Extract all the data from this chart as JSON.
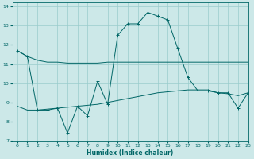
{
  "title": "",
  "xlabel": "Humidex (Indice chaleur)",
  "xlim": [
    -0.5,
    23
  ],
  "ylim": [
    7,
    14.2
  ],
  "yticks": [
    7,
    8,
    9,
    10,
    11,
    12,
    13,
    14
  ],
  "xticks": [
    0,
    1,
    2,
    3,
    4,
    5,
    6,
    7,
    8,
    9,
    10,
    11,
    12,
    13,
    14,
    15,
    16,
    17,
    18,
    19,
    20,
    21,
    22,
    23
  ],
  "bg_color": "#cce8e8",
  "grid_color": "#99cccc",
  "line_color": "#006666",
  "line1_x": [
    0,
    1,
    2,
    3,
    4,
    5,
    6,
    7,
    8,
    9,
    10,
    11,
    12,
    13,
    14,
    15,
    16,
    17,
    18,
    19,
    20,
    21,
    22,
    23
  ],
  "line1_y": [
    11.7,
    11.4,
    11.2,
    11.1,
    11.1,
    11.05,
    11.05,
    11.05,
    11.05,
    11.1,
    11.1,
    11.1,
    11.1,
    11.1,
    11.1,
    11.1,
    11.1,
    11.1,
    11.1,
    11.1,
    11.1,
    11.1,
    11.1,
    11.1
  ],
  "line2_x": [
    0,
    1,
    2,
    3,
    4,
    5,
    6,
    7,
    8,
    9,
    10,
    11,
    12,
    13,
    14,
    15,
    16,
    17,
    18,
    19,
    20,
    21,
    22,
    23
  ],
  "line2_y": [
    11.7,
    11.4,
    8.6,
    8.6,
    8.7,
    7.4,
    8.8,
    8.3,
    10.1,
    8.9,
    12.5,
    13.1,
    13.1,
    13.7,
    13.5,
    13.3,
    11.8,
    10.3,
    9.6,
    9.6,
    9.5,
    9.5,
    8.7,
    9.5
  ],
  "line3_x": [
    0,
    1,
    2,
    3,
    4,
    5,
    6,
    7,
    8,
    9,
    10,
    11,
    12,
    13,
    14,
    15,
    16,
    17,
    18,
    19,
    20,
    21,
    22,
    23
  ],
  "line3_y": [
    8.8,
    8.6,
    8.6,
    8.65,
    8.7,
    8.75,
    8.8,
    8.85,
    8.9,
    9.0,
    9.1,
    9.2,
    9.3,
    9.4,
    9.5,
    9.55,
    9.6,
    9.65,
    9.65,
    9.65,
    9.5,
    9.45,
    9.35,
    9.5
  ]
}
